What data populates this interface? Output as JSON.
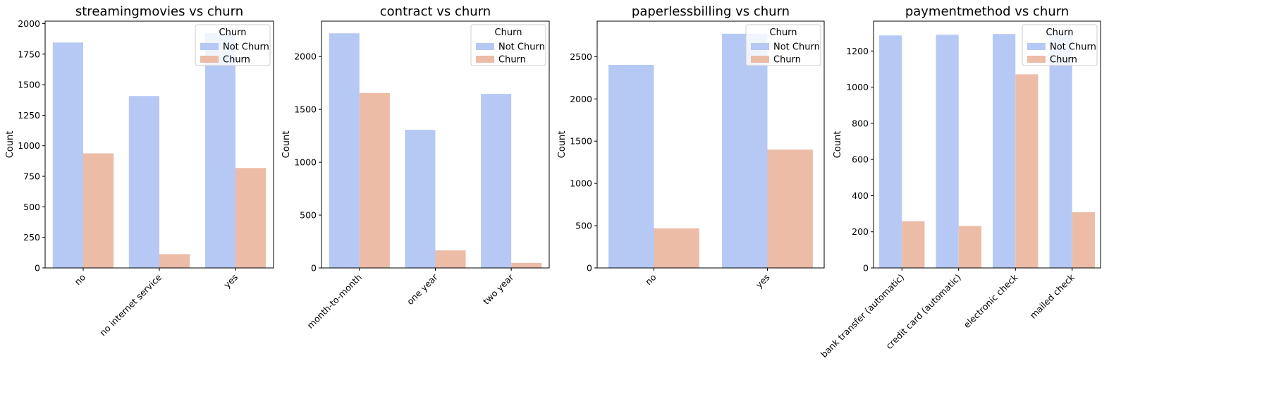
{
  "legend": {
    "title": "Churn",
    "entries": [
      "Not Churn",
      "Churn"
    ]
  },
  "colors": {
    "not_churn": "#b5c9f4",
    "churn": "#ecbca7"
  },
  "chart_data": [
    {
      "type": "bar",
      "title": "streamingmovies vs churn",
      "xlabel": "",
      "ylabel": "Count",
      "categories": [
        "no",
        "no internet service",
        "yes"
      ],
      "series": [
        {
          "name": "Not Churn",
          "values": [
            1845,
            1407,
            1922
          ]
        },
        {
          "name": "Churn",
          "values": [
            938,
            113,
            818
          ]
        }
      ],
      "ylim": [
        0,
        2020
      ],
      "yticks": [
        0,
        250,
        500,
        750,
        1000,
        1250,
        1500,
        1750,
        2000
      ],
      "legend_position": "top-right"
    },
    {
      "type": "bar",
      "title": "contract vs churn",
      "xlabel": "",
      "ylabel": "Count",
      "categories": [
        "month-to-month",
        "one year",
        "two year"
      ],
      "series": [
        {
          "name": "Not Churn",
          "values": [
            2220,
            1307,
            1647
          ]
        },
        {
          "name": "Churn",
          "values": [
            1655,
            166,
            48
          ]
        }
      ],
      "ylim": [
        0,
        2335
      ],
      "yticks": [
        0,
        500,
        1000,
        1500,
        2000
      ],
      "legend_position": "top-right"
    },
    {
      "type": "bar",
      "title": "paperlessbilling vs churn",
      "xlabel": "",
      "ylabel": "Count",
      "categories": [
        "no",
        "yes"
      ],
      "series": [
        {
          "name": "Not Churn",
          "values": [
            2403,
            2771
          ]
        },
        {
          "name": "Churn",
          "values": [
            469,
            1400
          ]
        }
      ],
      "ylim": [
        0,
        2920
      ],
      "yticks": [
        0,
        500,
        1000,
        1500,
        2000,
        2500
      ],
      "legend_position": "top-right"
    },
    {
      "type": "bar",
      "title": "paymentmethod vs churn",
      "xlabel": "",
      "ylabel": "Count",
      "categories": [
        "bank transfer (automatic)",
        "credit card (automatic)",
        "electronic check",
        "mailed check"
      ],
      "series": [
        {
          "name": "Not Churn",
          "values": [
            1286,
            1290,
            1294,
            1304
          ]
        },
        {
          "name": "Churn",
          "values": [
            258,
            232,
            1071,
            308
          ]
        }
      ],
      "ylim": [
        0,
        1365
      ],
      "yticks": [
        0,
        200,
        400,
        600,
        800,
        1000,
        1200
      ],
      "legend_position": "top-right"
    }
  ]
}
